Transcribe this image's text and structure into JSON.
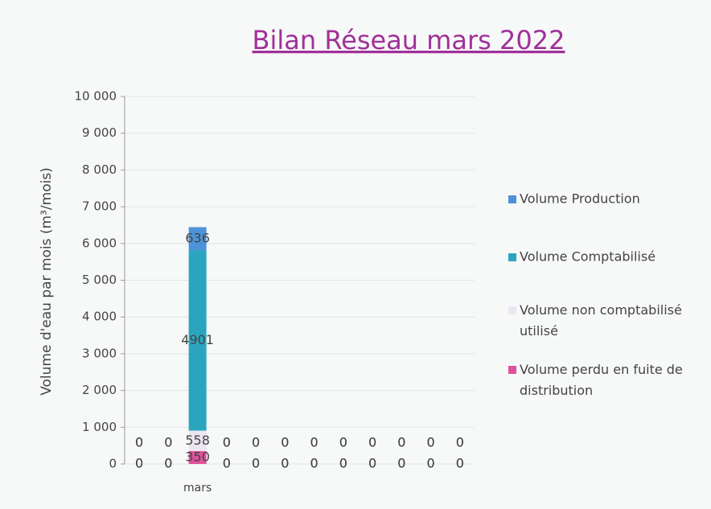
{
  "chart_data": {
    "type": "stacked_bar",
    "title": "Bilan Réseau mars  2022",
    "y_label": "Volume d'eau par mois (m³/mois)",
    "categories": [
      null,
      null,
      "mars",
      null,
      null,
      null,
      null,
      null,
      null,
      null,
      null,
      null
    ],
    "series": [
      {
        "name": "Volume perdu en fuite de distribution",
        "color": "#e0529c",
        "values": [
          0,
          0,
          350,
          0,
          0,
          0,
          0,
          0,
          0,
          0,
          0,
          0
        ]
      },
      {
        "name": "Volume non comptabilisé utilisé",
        "color": "#ebe6f2",
        "values": [
          0,
          0,
          558,
          0,
          0,
          0,
          0,
          0,
          0,
          0,
          0,
          0
        ]
      },
      {
        "name": "Volume Comptabilisé",
        "color": "#2ba5bf",
        "values": [
          0,
          0,
          4901,
          0,
          0,
          0,
          0,
          0,
          0,
          0,
          0,
          0
        ]
      },
      {
        "name": "Volume Production",
        "color": "#4d93da",
        "values": [
          0,
          0,
          636,
          0,
          0,
          0,
          0,
          0,
          0,
          0,
          0,
          0
        ]
      }
    ],
    "ylim": [
      0,
      10000
    ],
    "yticks": [
      0,
      {
        "value": 1000,
        "label": "1 000"
      },
      {
        "value": 2000,
        "label": "2 000"
      },
      {
        "value": 3000,
        "label": "3 000"
      },
      {
        "value": 4000,
        "label": "4 000"
      },
      {
        "value": 5000,
        "label": "5 000"
      },
      {
        "value": 6000,
        "label": "6 000"
      },
      {
        "value": 7000,
        "label": "7 000"
      },
      {
        "value": 8000,
        "label": "8 000"
      },
      {
        "value": 9000,
        "label": "9 000"
      },
      {
        "value": 10000,
        "label": "10 000"
      }
    ],
    "grid": true,
    "legend": "right"
  }
}
